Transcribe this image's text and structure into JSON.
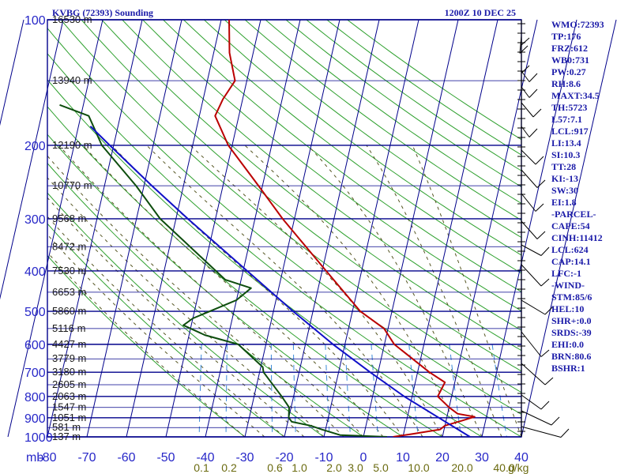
{
  "header": {
    "station_title": "KVBG (72393) Sounding",
    "time_title": "1200Z 10 DEC 25"
  },
  "indices": [
    "WMO:72393",
    "TP:176",
    "FRZ:612",
    "WB0:731",
    "PW:0.27",
    "RH:8.6",
    "MAXT:34.5",
    "TH:5723",
    "L57:7.1",
    "LCL:917",
    "LI:13.4",
    "SI:10.3",
    "TT:28",
    "KI:-13",
    "SW:30",
    "EI:1.8",
    "-PARCEL-",
    "CAPE:54",
    "CINH:11412",
    "LCL:624",
    "CAP:14.1",
    "LFC:-1",
    "-WIND-",
    "STM:85/6",
    "HEL:10",
    "SHR+:0.0",
    "SRDS:-39",
    "EHI:0.0",
    "BRN:80.6",
    "BSHR:1"
  ],
  "chart_data": {
    "type": "line",
    "chart_kind": "skew-T log-P thermodynamic diagram",
    "pressure_unit_label": "mb",
    "mixing_ratio_unit_label": "g/kg",
    "pressure_levels": [
      100,
      200,
      300,
      400,
      500,
      600,
      700,
      800,
      900,
      1000
    ],
    "pressure_range": [
      100,
      1000
    ],
    "pressure_scale": "log",
    "temperature_ticks": [
      -80,
      -70,
      -60,
      -50,
      -40,
      -30,
      -20,
      -10,
      0,
      10,
      20,
      30,
      40
    ],
    "temperature_range": [
      -80,
      40
    ],
    "height_labels": [
      {
        "p": 100,
        "label": "16530 m"
      },
      {
        "p": 140,
        "label": "13940 m"
      },
      {
        "p": 200,
        "label": "12190 m"
      },
      {
        "p": 250,
        "label": "10770 m"
      },
      {
        "p": 300,
        "label": "9568 m"
      },
      {
        "p": 350,
        "label": "8472 m"
      },
      {
        "p": 400,
        "label": "7530 m"
      },
      {
        "p": 450,
        "label": "6653 m"
      },
      {
        "p": 500,
        "label": "5860 m"
      },
      {
        "p": 550,
        "label": "5116 m"
      },
      {
        "p": 600,
        "label": "4427 m"
      },
      {
        "p": 650,
        "label": "3779 m"
      },
      {
        "p": 700,
        "label": "3180 m"
      },
      {
        "p": 750,
        "label": "2605 m"
      },
      {
        "p": 800,
        "label": "2063 m"
      },
      {
        "p": 850,
        "label": "1547 m"
      },
      {
        "p": 900,
        "label": "1051 m"
      },
      {
        "p": 950,
        "label": "581 m"
      },
      {
        "p": 1000,
        "label": "137 m"
      }
    ],
    "mixing_ratio_ticks": [
      "0.1",
      "0.2",
      "0.6",
      "1.0",
      "2.0",
      "3.0",
      "5.0",
      "10.0",
      "20.0",
      "40.0"
    ],
    "series": [
      {
        "name": "Temperature",
        "color": "#bb0000",
        "points": [
          {
            "p": 1000,
            "t": 7.5
          },
          {
            "p": 985,
            "t": 12
          },
          {
            "p": 960,
            "t": 19
          },
          {
            "p": 940,
            "t": 20
          },
          {
            "p": 915,
            "t": 24
          },
          {
            "p": 895,
            "t": 27
          },
          {
            "p": 880,
            "t": 22.5
          },
          {
            "p": 850,
            "t": 20
          },
          {
            "p": 800,
            "t": 16.5
          },
          {
            "p": 740,
            "t": 17.5
          },
          {
            "p": 700,
            "t": 13
          },
          {
            "p": 600,
            "t": 2.5
          },
          {
            "p": 550,
            "t": -1
          },
          {
            "p": 500,
            "t": -8
          },
          {
            "p": 400,
            "t": -19
          },
          {
            "p": 300,
            "t": -33
          },
          {
            "p": 250,
            "t": -41
          },
          {
            "p": 200,
            "t": -51
          },
          {
            "p": 170,
            "t": -56
          },
          {
            "p": 155,
            "t": -55
          },
          {
            "p": 140,
            "t": -53
          },
          {
            "p": 120,
            "t": -56
          },
          {
            "p": 100,
            "t": -58
          }
        ]
      },
      {
        "name": "Dewpoint",
        "color": "#0d4d0d",
        "points": [
          {
            "p": 1000,
            "t": 6
          },
          {
            "p": 990,
            "t": -6
          },
          {
            "p": 960,
            "t": -11
          },
          {
            "p": 940,
            "t": -14
          },
          {
            "p": 920,
            "t": -19
          },
          {
            "p": 900,
            "t": -20
          },
          {
            "p": 850,
            "t": -20.5
          },
          {
            "p": 800,
            "t": -23
          },
          {
            "p": 700,
            "t": -29
          },
          {
            "p": 680,
            "t": -29.5
          },
          {
            "p": 600,
            "t": -37
          },
          {
            "p": 570,
            "t": -46
          },
          {
            "p": 540,
            "t": -52
          },
          {
            "p": 520,
            "t": -50
          },
          {
            "p": 470,
            "t": -40
          },
          {
            "p": 440,
            "t": -37
          },
          {
            "p": 420,
            "t": -44
          },
          {
            "p": 300,
            "t": -64
          },
          {
            "p": 250,
            "t": -72
          },
          {
            "p": 200,
            "t": -83
          },
          {
            "p": 170,
            "t": -88
          },
          {
            "p": 160,
            "t": -96
          }
        ]
      },
      {
        "name": "Parcel",
        "color": "#1010c8",
        "points": [
          {
            "p": 1000,
            "t": 27
          },
          {
            "p": 900,
            "t": 18
          },
          {
            "p": 800,
            "t": 8
          },
          {
            "p": 700,
            "t": -2
          },
          {
            "p": 600,
            "t": -13
          },
          {
            "p": 500,
            "t": -25
          },
          {
            "p": 400,
            "t": -39
          },
          {
            "p": 300,
            "t": -57
          },
          {
            "p": 250,
            "t": -68
          },
          {
            "p": 200,
            "t": -81
          },
          {
            "p": 180,
            "t": -87
          }
        ]
      }
    ]
  }
}
